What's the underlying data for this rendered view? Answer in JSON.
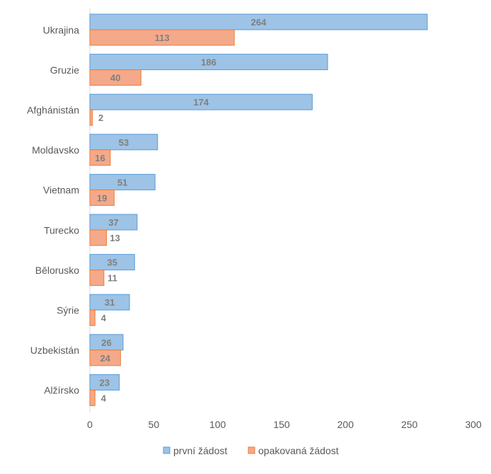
{
  "chart_data": {
    "type": "bar",
    "orientation": "horizontal",
    "categories": [
      "Ukrajina",
      "Gruzie",
      "Afghánistán",
      "Moldavsko",
      "Vietnam",
      "Turecko",
      "Bělorusko",
      "Sýrie",
      "Uzbekistán",
      "Alžírsko"
    ],
    "series": [
      {
        "name": "první žádost",
        "values": [
          264,
          186,
          174,
          53,
          51,
          37,
          35,
          31,
          26,
          23
        ],
        "color": "#9dc3e6",
        "stroke": "#5b9bd5"
      },
      {
        "name": "opakovaná žádost",
        "values": [
          113,
          40,
          2,
          16,
          19,
          13,
          11,
          4,
          24,
          4
        ],
        "color": "#f4a98a",
        "stroke": "#ed7d31"
      }
    ],
    "xlim": [
      0,
      300
    ],
    "x_ticks": [
      0,
      50,
      100,
      150,
      200,
      250,
      300
    ],
    "grid": false,
    "legend_position": "bottom",
    "data_labels": true
  }
}
